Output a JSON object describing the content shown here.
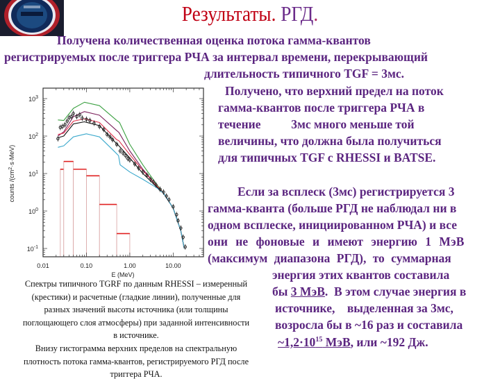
{
  "slide": {
    "title_part1": "Результаты.",
    "title_part2": "РГД",
    "title_part3": ".",
    "logo_label": "logo emblem",
    "intro_lines": [
      "Получена количественная оценка потока гамма-квантов",
      "регистрируемых после триггера РЧА за интервал времени, перекрывающий",
      "длительность типичного TGF = 3мс."
    ],
    "paragraph2_lines": [
      "Получено, что верхний предел на поток",
      "гамма-квантов после триггера РЧА в",
      "течение          3мс много меньше той",
      "величины, что должна была получиться",
      "для типичных TGF с RHESSI и BATSE."
    ],
    "paragraph3_lines": [
      "Если за всплеск (3мс) регистрируется 3",
      "гамма-кванта (больше РГД не наблюдал ни в",
      "одном всплеске, инициированном РЧА) и все",
      "они не фоновые и имеют энергию 1 МэВ",
      "(максимум диапазона РГД), то суммарная",
      "энергия этих квантов составила"
    ],
    "p3_line7_pre": "бы ",
    "p3_line7_underlined": "3 МэВ",
    "p3_line7_post": ".  В этом случае энергия в",
    "p3_line8": "источнике,    выделенная за 3мс,",
    "p3_line9": "возросла бы в ~16 раз и составила",
    "p3_line10_u1": "~1,2·10",
    "p3_line10_sup": "15",
    "p3_line10_u2": " МэВ",
    "p3_line10_post": ", или ~192 Дж.",
    "caption_lines": [
      "Спектры типичного TGRF по данным RHESSI – измеренный",
      "(крестики) и расчетные (гладкие линии), полученные для",
      "разных значений высоты источника (или толщины",
      "поглощающего слоя атмосферы) при заданной интенсивности",
      "в источнике.",
      "Внизу гистограмма верхних пределов на спектральную",
      "плотность потока гамма-квантов, регистрируемого РГД после",
      "триггера РЧА."
    ]
  },
  "chart_data": {
    "type": "line",
    "xlabel": "E (MeV)",
    "ylabel": "counts /(cm2·s·MeV)",
    "ylabel_pre": "counts /(cm",
    "ylabel_sup": "2",
    "ylabel_post": "·s·MeV)",
    "x_scale": "log",
    "y_scale": "log",
    "xlim": [
      0.01,
      50
    ],
    "ylim": [
      0.06,
      1900
    ],
    "x_ticks": [
      0.01,
      0.1,
      1,
      10
    ],
    "x_tick_labels": [
      "0.01",
      "0.10",
      "1.00",
      "10.00"
    ],
    "y_ticks": [
      1000,
      100,
      10,
      1,
      0.1
    ],
    "y_tick_labels": [
      {
        "base": "10",
        "exp": "3"
      },
      {
        "base": "10",
        "exp": "2"
      },
      {
        "base": "10",
        "exp": "1"
      },
      {
        "base": "10",
        "exp": "0"
      },
      {
        "base": "10",
        "exp": "-1"
      }
    ],
    "series": [
      {
        "color": "#3aa040",
        "points": [
          [
            0.022,
            270
          ],
          [
            0.03,
            260
          ],
          [
            0.05,
            550
          ],
          [
            0.09,
            800
          ],
          [
            0.2,
            650
          ],
          [
            0.5,
            260
          ],
          [
            0.58,
            230
          ],
          [
            1,
            60
          ],
          [
            2,
            17
          ],
          [
            4,
            5.5
          ],
          [
            6,
            3
          ],
          [
            10,
            1.2
          ],
          [
            15,
            0.3
          ],
          [
            18,
            0.1
          ]
        ]
      },
      {
        "color": "#7a1f5a",
        "points": [
          [
            0.022,
            100
          ],
          [
            0.03,
            130
          ],
          [
            0.05,
            330
          ],
          [
            0.09,
            450
          ],
          [
            0.2,
            360
          ],
          [
            0.5,
            140
          ],
          [
            0.56,
            125
          ],
          [
            1,
            40
          ],
          [
            2,
            13
          ],
          [
            4,
            5
          ],
          [
            6,
            3
          ],
          [
            10,
            1.2
          ],
          [
            15,
            0.3
          ],
          [
            18,
            0.1
          ]
        ]
      },
      {
        "color": "#e0304a",
        "points": [
          [
            0.022,
            110
          ],
          [
            0.03,
            120
          ],
          [
            0.05,
            250
          ],
          [
            0.09,
            290
          ],
          [
            0.2,
            230
          ],
          [
            0.5,
            80
          ],
          [
            0.56,
            75
          ],
          [
            1,
            32
          ],
          [
            2,
            12
          ],
          [
            4,
            5
          ],
          [
            6,
            3
          ],
          [
            10,
            1.2
          ],
          [
            15,
            0.3
          ],
          [
            18,
            0.1
          ]
        ]
      },
      {
        "color": "#111111",
        "points": [
          [
            0.022,
            90
          ],
          [
            0.03,
            100
          ],
          [
            0.05,
            210
          ],
          [
            0.09,
            240
          ],
          [
            0.2,
            190
          ],
          [
            0.5,
            62
          ],
          [
            0.56,
            55
          ],
          [
            1,
            26
          ],
          [
            2,
            10
          ],
          [
            4,
            4.6
          ],
          [
            6,
            3
          ],
          [
            10,
            1.2
          ],
          [
            15,
            0.3
          ],
          [
            18,
            0.1
          ]
        ]
      },
      {
        "color": "#3aa8cc",
        "points": [
          [
            0.022,
            50
          ],
          [
            0.03,
            55
          ],
          [
            0.05,
            95
          ],
          [
            0.1,
            115
          ],
          [
            0.2,
            95
          ],
          [
            0.45,
            38
          ],
          [
            0.55,
            30
          ],
          [
            0.6,
            17
          ],
          [
            1,
            11
          ],
          [
            2,
            7
          ],
          [
            4,
            4.3
          ],
          [
            6,
            3
          ],
          [
            10,
            1.2
          ],
          [
            15,
            0.3
          ],
          [
            18,
            0.1
          ]
        ]
      }
    ],
    "measured_points": [
      [
        0.022,
        85
      ],
      [
        0.025,
        170
      ],
      [
        0.028,
        180
      ],
      [
        0.032,
        200
      ],
      [
        0.036,
        250
      ],
      [
        0.04,
        310
      ],
      [
        0.045,
        330
      ],
      [
        0.05,
        400
      ],
      [
        0.06,
        330
      ],
      [
        0.07,
        370
      ],
      [
        0.08,
        300
      ],
      [
        0.1,
        280
      ],
      [
        0.12,
        260
      ],
      [
        0.15,
        220
      ],
      [
        0.2,
        180
      ],
      [
        0.25,
        150
      ],
      [
        0.3,
        110
      ],
      [
        0.35,
        95
      ],
      [
        0.4,
        80
      ],
      [
        0.5,
        60
      ],
      [
        0.6,
        40
      ],
      [
        0.7,
        35
      ],
      [
        0.8,
        30
      ],
      [
        0.9,
        25
      ],
      [
        1,
        23
      ],
      [
        1.3,
        18
      ],
      [
        1.6,
        14
      ],
      [
        2,
        11
      ],
      [
        2.5,
        9
      ],
      [
        3,
        7
      ],
      [
        3.5,
        6
      ],
      [
        4,
        5
      ],
      [
        5,
        3.8
      ],
      [
        6,
        3.2
      ],
      [
        7,
        2.5
      ],
      [
        8,
        2
      ],
      [
        10,
        1.3
      ],
      [
        12,
        0.8
      ],
      [
        13,
        0.55
      ],
      [
        15,
        0.35
      ],
      [
        17,
        0.2
      ],
      [
        19,
        0.11
      ]
    ],
    "histogram": {
      "color": "#e02020",
      "bin_edges": [
        0.025,
        0.03,
        0.05,
        0.1,
        0.2,
        0.5,
        1.0
      ],
      "values": [
        13,
        21,
        13,
        8.7,
        1.5,
        0.25
      ]
    },
    "grid": false
  }
}
